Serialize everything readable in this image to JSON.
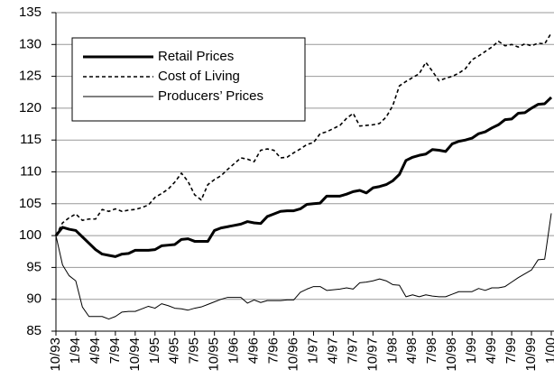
{
  "chart_data": {
    "type": "line",
    "categories": [
      "10/93",
      null,
      null,
      "1/94",
      null,
      null,
      "4/94",
      null,
      null,
      "7/94",
      null,
      null,
      "10/94",
      null,
      null,
      "1/95",
      null,
      null,
      "4/95",
      null,
      null,
      "7/95",
      null,
      null,
      "10/95",
      null,
      null,
      "1/96",
      null,
      null,
      "4/96",
      null,
      null,
      "7/96",
      null,
      null,
      "10/96",
      null,
      null,
      "1/97",
      null,
      null,
      "4/97",
      null,
      null,
      "7/97",
      null,
      null,
      "10/97",
      null,
      null,
      "1/98",
      null,
      null,
      "4/98",
      null,
      null,
      "7/98",
      null,
      null,
      "10/98",
      null,
      null,
      "1/99",
      null,
      null,
      "4/99",
      null,
      null,
      "7/99",
      null,
      null,
      "10/99",
      null,
      null,
      "1/00"
    ],
    "series": [
      {
        "name": "Retail Prices",
        "color": "#000000",
        "style": "solid",
        "width": 3,
        "values": [
          100,
          101.3,
          101,
          100.8,
          99.8,
          98.8,
          97.8,
          97.1,
          96.9,
          96.7,
          97.1,
          97.2,
          97.7,
          97.7,
          97.7,
          97.8,
          98.4,
          98.5,
          98.6,
          99.4,
          99.5,
          99.1,
          99.1,
          99.1,
          100.8,
          101.2,
          101.4,
          101.6,
          101.8,
          102.2,
          102,
          101.9,
          103,
          103.4,
          103.8,
          103.9,
          103.9,
          104.2,
          104.9,
          105,
          105.1,
          106.2,
          106.2,
          106.2,
          106.5,
          106.9,
          107.1,
          106.7,
          107.5,
          107.7,
          108,
          108.6,
          109.6,
          111.8,
          112.3,
          112.6,
          112.8,
          113.5,
          113.4,
          113.2,
          114.4,
          114.8,
          115,
          115.3,
          116,
          116.3,
          116.9,
          117.4,
          118.2,
          118.3,
          119.2,
          119.3,
          120,
          120.6,
          120.7,
          121.7
        ]
      },
      {
        "name": "Cost of Living",
        "color": "#000000",
        "style": "dashed",
        "width": 1.6,
        "values": [
          100,
          102,
          102.8,
          103.4,
          102.4,
          102.6,
          102.6,
          104.1,
          103.8,
          104.2,
          103.8,
          104,
          104.1,
          104.4,
          104.8,
          106,
          106.6,
          107.3,
          108.4,
          109.8,
          108.5,
          106.4,
          105.6,
          108,
          108.8,
          109.4,
          110.4,
          111.3,
          112.2,
          112,
          111.6,
          113.4,
          113.6,
          113.4,
          112.2,
          112.3,
          113,
          113.6,
          114.3,
          114.6,
          116,
          116.3,
          116.8,
          117.3,
          118.4,
          119.2,
          117.2,
          117.3,
          117.4,
          117.6,
          118.6,
          120.4,
          123.5,
          124.2,
          124.8,
          125.4,
          127.2,
          125.8,
          124.3,
          124.7,
          125,
          125.5,
          126.2,
          127.6,
          128.2,
          128.9,
          129.6,
          130.5,
          129.8,
          130,
          129.6,
          130.1,
          129.8,
          130.2,
          130.1,
          131.8
        ]
      },
      {
        "name": "Producers’ Prices",
        "color": "#000000",
        "style": "solid",
        "width": 1,
        "values": [
          100,
          95.4,
          93.7,
          92.9,
          88.8,
          87.3,
          87.3,
          87.3,
          86.9,
          87.3,
          88,
          88.1,
          88.1,
          88.5,
          88.9,
          88.6,
          89.3,
          89,
          88.6,
          88.5,
          88.3,
          88.6,
          88.8,
          89.2,
          89.6,
          90,
          90.3,
          90.3,
          90.3,
          89.4,
          89.9,
          89.5,
          89.8,
          89.8,
          89.8,
          89.9,
          89.9,
          91.1,
          91.6,
          92,
          92,
          91.4,
          91.5,
          91.6,
          91.8,
          91.6,
          92.6,
          92.7,
          92.9,
          93.2,
          92.9,
          92.3,
          92.2,
          90.4,
          90.7,
          90.4,
          90.7,
          90.5,
          90.4,
          90.4,
          90.8,
          91.2,
          91.2,
          91.2,
          91.7,
          91.4,
          91.8,
          91.8,
          92,
          92.7,
          93.4,
          94,
          94.6,
          96.2,
          96.3,
          103.5
        ]
      }
    ],
    "ylim": [
      85,
      135
    ],
    "yticks": [
      85,
      90,
      95,
      100,
      105,
      110,
      115,
      120,
      125,
      130,
      135
    ],
    "grid": true,
    "legend": "upper left"
  }
}
